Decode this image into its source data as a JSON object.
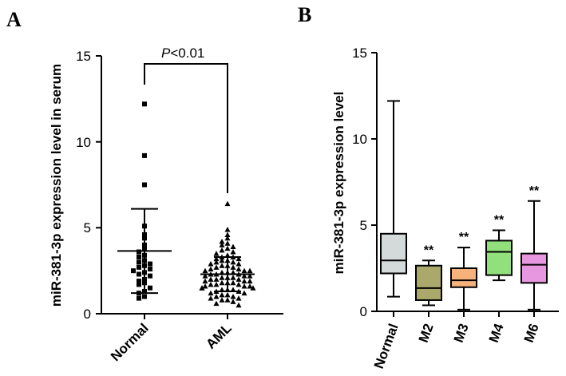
{
  "panels": {
    "a": "A",
    "b": "B"
  },
  "chart_data": [
    {
      "type": "scatter",
      "title": "",
      "panel": "A",
      "ylabel": "miR-381-3p expression level in serum",
      "ylim": [
        0,
        15
      ],
      "yticks": [
        "0",
        "5",
        "10",
        "15"
      ],
      "categories": [
        "Normal",
        "AML"
      ],
      "annotation": {
        "italic": "P",
        "rest": "<0.01"
      },
      "series": [
        {
          "name": "Normal",
          "marker": "square",
          "mean": 3.65,
          "sd_low": 1.2,
          "sd_high": 6.1,
          "values": [
            12.2,
            9.2,
            7.5,
            5.1,
            4.6,
            4.4,
            4.0,
            3.8,
            3.6,
            3.4,
            3.3,
            3.1,
            3.0,
            2.9,
            2.8,
            2.7,
            2.6,
            2.5,
            2.4,
            2.3,
            2.2,
            2.0,
            1.9,
            1.8,
            1.7,
            1.5,
            1.3,
            1.2,
            1.0,
            0.9
          ]
        },
        {
          "name": "AML",
          "marker": "triangle",
          "mean": 2.3,
          "sd_low": 1.3,
          "sd_high": 3.3,
          "values": [
            6.4,
            4.9,
            4.6,
            4.4,
            4.2,
            4.1,
            4.0,
            3.9,
            3.8,
            3.7,
            3.6,
            3.5,
            3.4,
            3.3,
            3.3,
            3.2,
            3.2,
            3.1,
            3.1,
            3.0,
            3.0,
            2.9,
            2.9,
            2.8,
            2.8,
            2.7,
            2.7,
            2.6,
            2.6,
            2.5,
            2.5,
            2.5,
            2.4,
            2.4,
            2.4,
            2.3,
            2.3,
            2.3,
            2.2,
            2.2,
            2.2,
            2.1,
            2.1,
            2.1,
            2.0,
            2.0,
            2.0,
            1.9,
            1.9,
            1.9,
            1.8,
            1.8,
            1.8,
            1.7,
            1.7,
            1.7,
            1.6,
            1.6,
            1.6,
            1.5,
            1.5,
            1.5,
            1.4,
            1.4,
            1.4,
            1.3,
            1.3,
            1.2,
            1.2,
            1.1,
            1.1,
            1.0,
            1.0,
            0.9,
            0.9,
            0.8,
            0.8,
            0.7,
            0.6,
            0.5
          ]
        }
      ]
    },
    {
      "type": "box",
      "title": "",
      "panel": "B",
      "ylabel": "miR-381-3p expression level",
      "ylim": [
        0,
        15
      ],
      "yticks": [
        "0",
        "5",
        "10",
        "15"
      ],
      "categories": [
        "Normal",
        "M2",
        "M3",
        "M4",
        "M6"
      ],
      "boxes": [
        {
          "name": "Normal",
          "min": 0.85,
          "q1": 2.2,
          "median": 2.95,
          "q3": 4.5,
          "max": 12.2,
          "color": "#d4d9d9",
          "sig": ""
        },
        {
          "name": "M2",
          "min": 0.35,
          "q1": 0.65,
          "median": 1.35,
          "q3": 2.65,
          "max": 2.95,
          "color": "#aaa86a",
          "sig": "**"
        },
        {
          "name": "M3",
          "min": 0.1,
          "q1": 1.4,
          "median": 1.8,
          "q3": 2.5,
          "max": 3.7,
          "color": "#f5b27a",
          "sig": "**"
        },
        {
          "name": "M4",
          "min": 1.8,
          "q1": 2.1,
          "median": 3.45,
          "q3": 4.1,
          "max": 4.7,
          "color": "#92e07c",
          "sig": "**"
        },
        {
          "name": "M6",
          "min": 0.1,
          "q1": 1.65,
          "median": 2.7,
          "q3": 3.35,
          "max": 6.4,
          "color": "#e797e0",
          "sig": "**"
        }
      ]
    }
  ]
}
